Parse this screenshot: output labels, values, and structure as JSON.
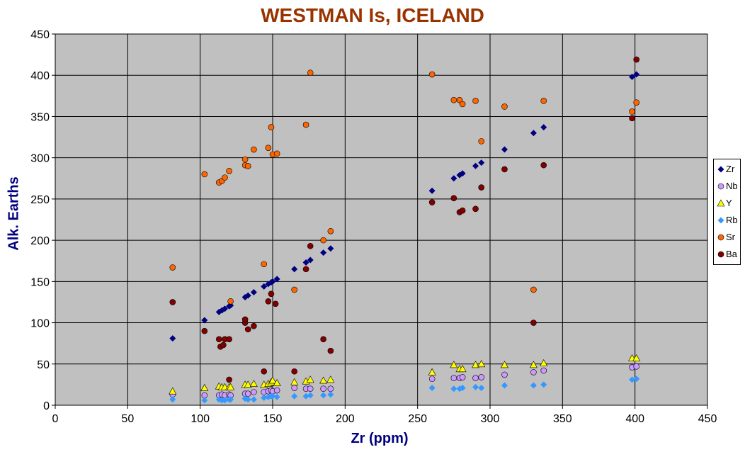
{
  "chart_data": {
    "type": "scatter",
    "title": "WESTMAN Is, ICELAND",
    "xlabel": "Zr (ppm)",
    "ylabel": "Alk. Earths",
    "xlim": [
      0,
      450
    ],
    "ylim": [
      0,
      450
    ],
    "xticks": [
      0,
      50,
      100,
      150,
      200,
      250,
      300,
      350,
      400,
      450
    ],
    "yticks": [
      0,
      50,
      100,
      150,
      200,
      250,
      300,
      350,
      400,
      450
    ],
    "grid": true,
    "legend_position": "right",
    "plot_background": "#c0c0c0",
    "series": [
      {
        "name": "Zr",
        "marker": "diamond",
        "color": "#000080",
        "points": [
          [
            81,
            81
          ],
          [
            103,
            103
          ],
          [
            113,
            113
          ],
          [
            115,
            115
          ],
          [
            117,
            117
          ],
          [
            120,
            120
          ],
          [
            121,
            121
          ],
          [
            131,
            131
          ],
          [
            133,
            133
          ],
          [
            137,
            137
          ],
          [
            144,
            144
          ],
          [
            147,
            147
          ],
          [
            149,
            149
          ],
          [
            150,
            150
          ],
          [
            153,
            153
          ],
          [
            165,
            165
          ],
          [
            173,
            173
          ],
          [
            176,
            176
          ],
          [
            185,
            185
          ],
          [
            190,
            190
          ],
          [
            260,
            260
          ],
          [
            275,
            275
          ],
          [
            279,
            279
          ],
          [
            281,
            281
          ],
          [
            290,
            290
          ],
          [
            294,
            294
          ],
          [
            310,
            310
          ],
          [
            330,
            330
          ],
          [
            337,
            337
          ],
          [
            398,
            398
          ],
          [
            401,
            401
          ]
        ]
      },
      {
        "name": "Nb",
        "marker": "circle",
        "color": "#cc99ff",
        "points": [
          [
            81,
            13
          ],
          [
            103,
            12
          ],
          [
            113,
            12
          ],
          [
            115,
            13
          ],
          [
            117,
            12
          ],
          [
            120,
            13
          ],
          [
            121,
            12
          ],
          [
            131,
            14
          ],
          [
            133,
            14
          ],
          [
            137,
            16
          ],
          [
            144,
            16
          ],
          [
            147,
            17
          ],
          [
            149,
            18
          ],
          [
            150,
            17
          ],
          [
            153,
            18
          ],
          [
            165,
            21
          ],
          [
            173,
            20
          ],
          [
            176,
            20
          ],
          [
            185,
            20
          ],
          [
            190,
            20
          ],
          [
            260,
            32
          ],
          [
            275,
            33
          ],
          [
            279,
            33
          ],
          [
            281,
            34
          ],
          [
            290,
            33
          ],
          [
            294,
            34
          ],
          [
            310,
            37
          ],
          [
            330,
            40
          ],
          [
            337,
            42
          ],
          [
            398,
            46
          ],
          [
            401,
            47
          ]
        ]
      },
      {
        "name": "Y",
        "marker": "triangle",
        "color": "#ffff00",
        "points": [
          [
            81,
            17
          ],
          [
            103,
            21
          ],
          [
            113,
            23
          ],
          [
            115,
            22
          ],
          [
            117,
            22
          ],
          [
            120,
            22
          ],
          [
            121,
            22
          ],
          [
            131,
            25
          ],
          [
            133,
            25
          ],
          [
            137,
            26
          ],
          [
            144,
            25
          ],
          [
            147,
            26
          ],
          [
            149,
            28
          ],
          [
            150,
            30
          ],
          [
            153,
            27
          ],
          [
            165,
            28
          ],
          [
            173,
            29
          ],
          [
            176,
            31
          ],
          [
            185,
            30
          ],
          [
            190,
            31
          ],
          [
            260,
            40
          ],
          [
            275,
            49
          ],
          [
            279,
            44
          ],
          [
            281,
            44
          ],
          [
            290,
            49
          ],
          [
            294,
            50
          ],
          [
            310,
            49
          ],
          [
            330,
            49
          ],
          [
            337,
            51
          ],
          [
            398,
            57
          ],
          [
            401,
            57
          ]
        ]
      },
      {
        "name": "Rb",
        "marker": "diamond",
        "color": "#3399ff",
        "points": [
          [
            81,
            7
          ],
          [
            103,
            6
          ],
          [
            113,
            7
          ],
          [
            115,
            6
          ],
          [
            117,
            6
          ],
          [
            120,
            7
          ],
          [
            121,
            7
          ],
          [
            131,
            8
          ],
          [
            133,
            7
          ],
          [
            137,
            7
          ],
          [
            144,
            9
          ],
          [
            147,
            10
          ],
          [
            149,
            11
          ],
          [
            150,
            11
          ],
          [
            153,
            10
          ],
          [
            165,
            11
          ],
          [
            173,
            11
          ],
          [
            176,
            12
          ],
          [
            185,
            12
          ],
          [
            190,
            13
          ],
          [
            260,
            21
          ],
          [
            275,
            20
          ],
          [
            279,
            20
          ],
          [
            281,
            21
          ],
          [
            290,
            22
          ],
          [
            294,
            21
          ],
          [
            310,
            24
          ],
          [
            330,
            24
          ],
          [
            337,
            25
          ],
          [
            398,
            31
          ],
          [
            401,
            32
          ]
        ]
      },
      {
        "name": "Sr",
        "marker": "circle",
        "color": "#ff6600",
        "points": [
          [
            81,
            167
          ],
          [
            103,
            280
          ],
          [
            113,
            270
          ],
          [
            115,
            272
          ],
          [
            117,
            276
          ],
          [
            120,
            284
          ],
          [
            121,
            126
          ],
          [
            131,
            291
          ],
          [
            131,
            298
          ],
          [
            133,
            290
          ],
          [
            137,
            310
          ],
          [
            144,
            171
          ],
          [
            147,
            312
          ],
          [
            149,
            337
          ],
          [
            150,
            304
          ],
          [
            153,
            305
          ],
          [
            165,
            140
          ],
          [
            173,
            340
          ],
          [
            176,
            403
          ],
          [
            185,
            200
          ],
          [
            190,
            211
          ],
          [
            260,
            401
          ],
          [
            275,
            370
          ],
          [
            279,
            370
          ],
          [
            281,
            365
          ],
          [
            290,
            369
          ],
          [
            294,
            320
          ],
          [
            310,
            362
          ],
          [
            330,
            140
          ],
          [
            337,
            369
          ],
          [
            398,
            356
          ],
          [
            401,
            367
          ]
        ]
      },
      {
        "name": "Ba",
        "marker": "circle",
        "color": "#800000",
        "points": [
          [
            81,
            125
          ],
          [
            103,
            90
          ],
          [
            113,
            80
          ],
          [
            114,
            71
          ],
          [
            116,
            73
          ],
          [
            117,
            80
          ],
          [
            120,
            80
          ],
          [
            120,
            31
          ],
          [
            131,
            100
          ],
          [
            131,
            104
          ],
          [
            133,
            92
          ],
          [
            137,
            96
          ],
          [
            144,
            41
          ],
          [
            147,
            126
          ],
          [
            149,
            135
          ],
          [
            152,
            123
          ],
          [
            165,
            41
          ],
          [
            173,
            165
          ],
          [
            176,
            193
          ],
          [
            185,
            80
          ],
          [
            190,
            66
          ],
          [
            260,
            246
          ],
          [
            275,
            251
          ],
          [
            279,
            234
          ],
          [
            281,
            236
          ],
          [
            290,
            238
          ],
          [
            294,
            264
          ],
          [
            310,
            286
          ],
          [
            330,
            100
          ],
          [
            337,
            291
          ],
          [
            398,
            348
          ],
          [
            401,
            419
          ]
        ]
      }
    ]
  }
}
